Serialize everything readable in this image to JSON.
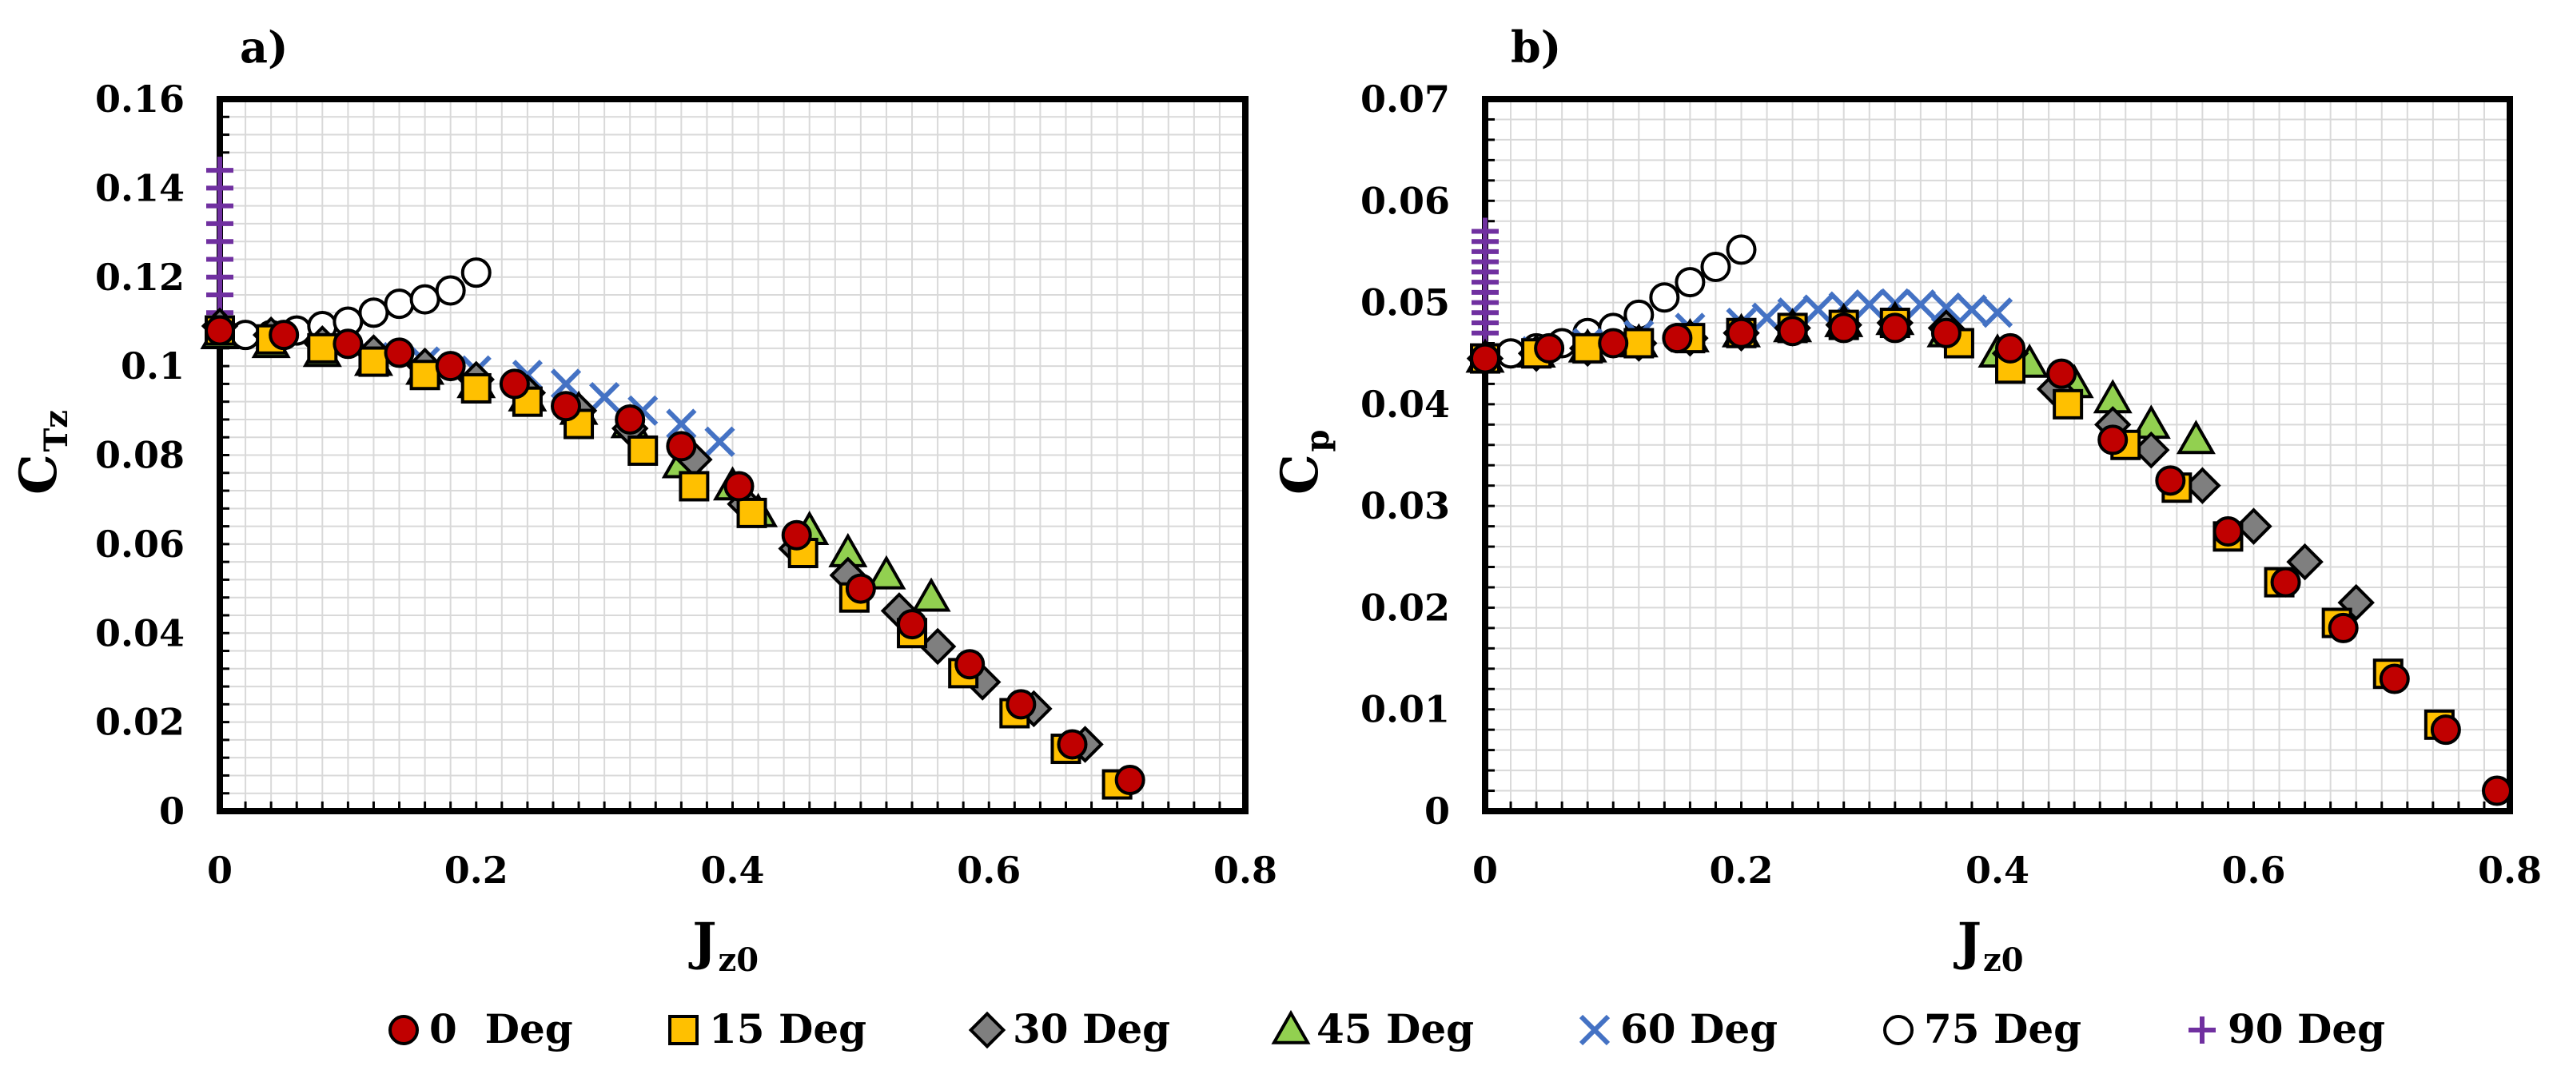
{
  "chart_data": [
    {
      "type": "scatter",
      "panel_label": "a)",
      "xlabel": "J",
      "xlabel_sub": "z0",
      "ylabel": "C",
      "ylabel_sub": "Tz",
      "xlim": [
        0,
        0.8
      ],
      "ylim": [
        0,
        0.16
      ],
      "xticks": [
        0,
        0.2,
        0.4,
        0.6,
        0.8
      ],
      "yticks": [
        0,
        0.02,
        0.04,
        0.06,
        0.08,
        0.1,
        0.12,
        0.14,
        0.16
      ],
      "xtick_labels": [
        "0",
        "0.2",
        "0.4",
        "0.6",
        "0.8"
      ],
      "ytick_labels": [
        "0",
        "0.02",
        "0.04",
        "0.06",
        "0.08",
        "0.1",
        "0.12",
        "0.14",
        "0.16"
      ],
      "grid": true,
      "series": [
        {
          "name": "0  Deg",
          "marker": "circle",
          "x": [
            0,
            0.05,
            0.1,
            0.14,
            0.18,
            0.23,
            0.27,
            0.32,
            0.36,
            0.405,
            0.45,
            0.5,
            0.54,
            0.585,
            0.625,
            0.665,
            0.71
          ],
          "y": [
            0.108,
            0.107,
            0.105,
            0.103,
            0.1,
            0.096,
            0.091,
            0.088,
            0.082,
            0.073,
            0.062,
            0.05,
            0.042,
            0.033,
            0.024,
            0.015,
            0.007
          ]
        },
        {
          "name": "15 Deg",
          "marker": "square",
          "x": [
            0,
            0.04,
            0.08,
            0.12,
            0.16,
            0.2,
            0.24,
            0.28,
            0.33,
            0.37,
            0.415,
            0.455,
            0.495,
            0.54,
            0.58,
            0.62,
            0.66,
            0.7
          ],
          "y": [
            0.108,
            0.106,
            0.104,
            0.101,
            0.098,
            0.095,
            0.092,
            0.087,
            0.081,
            0.073,
            0.067,
            0.058,
            0.048,
            0.04,
            0.031,
            0.022,
            0.014,
            0.006
          ]
        },
        {
          "name": "30 Deg",
          "marker": "diamond",
          "x": [
            0,
            0.04,
            0.08,
            0.12,
            0.16,
            0.2,
            0.24,
            0.28,
            0.32,
            0.37,
            0.41,
            0.45,
            0.49,
            0.53,
            0.56,
            0.595,
            0.635,
            0.675
          ],
          "y": [
            0.109,
            0.107,
            0.105,
            0.103,
            0.1,
            0.097,
            0.094,
            0.09,
            0.086,
            0.079,
            0.069,
            0.059,
            0.053,
            0.045,
            0.037,
            0.029,
            0.023,
            0.015
          ]
        },
        {
          "name": "45 Deg",
          "marker": "triangle",
          "x": [
            0,
            0.04,
            0.08,
            0.12,
            0.16,
            0.2,
            0.24,
            0.28,
            0.32,
            0.36,
            0.4,
            0.42,
            0.46,
            0.49,
            0.52,
            0.555
          ],
          "y": [
            0.107,
            0.105,
            0.103,
            0.101,
            0.099,
            0.096,
            0.093,
            0.09,
            0.087,
            0.078,
            0.073,
            0.067,
            0.063,
            0.058,
            0.053,
            0.048
          ]
        },
        {
          "name": "60 Deg",
          "marker": "x",
          "x": [
            0,
            0.04,
            0.08,
            0.12,
            0.16,
            0.2,
            0.24,
            0.27,
            0.3,
            0.33,
            0.36,
            0.39
          ],
          "y": [
            0.108,
            0.106,
            0.104,
            0.102,
            0.101,
            0.099,
            0.098,
            0.096,
            0.093,
            0.09,
            0.087,
            0.083
          ]
        },
        {
          "name": "75 Deg",
          "marker": "open-circle",
          "x": [
            0,
            0.02,
            0.04,
            0.06,
            0.08,
            0.1,
            0.12,
            0.14,
            0.16,
            0.18,
            0.2
          ],
          "y": [
            0.108,
            0.107,
            0.107,
            0.108,
            0.109,
            0.11,
            0.112,
            0.114,
            0.115,
            0.117,
            0.121
          ]
        },
        {
          "name": "90 Deg",
          "marker": "plus",
          "x": [
            0,
            0,
            0,
            0,
            0,
            0,
            0,
            0,
            0,
            0
          ],
          "y": [
            0.108,
            0.112,
            0.116,
            0.12,
            0.124,
            0.128,
            0.132,
            0.136,
            0.14,
            0.144
          ]
        }
      ]
    },
    {
      "type": "scatter",
      "panel_label": "b)",
      "xlabel": "J",
      "xlabel_sub": "z0",
      "ylabel": "C",
      "ylabel_sub": "p",
      "xlim": [
        0,
        0.8
      ],
      "ylim": [
        0,
        0.07
      ],
      "xticks": [
        0,
        0.2,
        0.4,
        0.6,
        0.8
      ],
      "yticks": [
        0,
        0.01,
        0.02,
        0.03,
        0.04,
        0.05,
        0.06,
        0.07
      ],
      "xtick_labels": [
        "0",
        "0.2",
        "0.4",
        "0.6",
        "0.8"
      ],
      "ytick_labels": [
        "0",
        "0.01",
        "0.02",
        "0.03",
        "0.04",
        "0.05",
        "0.06",
        "0.07"
      ],
      "grid": true,
      "series": [
        {
          "name": "0  Deg",
          "marker": "circle",
          "x": [
            0,
            0.05,
            0.1,
            0.15,
            0.2,
            0.24,
            0.28,
            0.32,
            0.36,
            0.41,
            0.45,
            0.49,
            0.535,
            0.58,
            0.625,
            0.67,
            0.71,
            0.75,
            0.79
          ],
          "y": [
            0.0445,
            0.0455,
            0.046,
            0.0465,
            0.047,
            0.0472,
            0.0475,
            0.0475,
            0.047,
            0.0455,
            0.043,
            0.0365,
            0.0325,
            0.0275,
            0.0225,
            0.018,
            0.013,
            0.008,
            0.002
          ]
        },
        {
          "name": "15 Deg",
          "marker": "square",
          "x": [
            0,
            0.04,
            0.08,
            0.12,
            0.16,
            0.2,
            0.24,
            0.28,
            0.32,
            0.37,
            0.41,
            0.455,
            0.5,
            0.54,
            0.58,
            0.62,
            0.665,
            0.705,
            0.745
          ],
          "y": [
            0.0445,
            0.045,
            0.0455,
            0.046,
            0.0465,
            0.047,
            0.0475,
            0.0478,
            0.048,
            0.046,
            0.0435,
            0.04,
            0.036,
            0.0318,
            0.027,
            0.0225,
            0.0185,
            0.0135,
            0.0085
          ]
        },
        {
          "name": "30 Deg",
          "marker": "diamond",
          "x": [
            0,
            0.04,
            0.08,
            0.12,
            0.16,
            0.2,
            0.24,
            0.28,
            0.32,
            0.36,
            0.41,
            0.445,
            0.49,
            0.52,
            0.56,
            0.6,
            0.64,
            0.68
          ],
          "y": [
            0.0445,
            0.045,
            0.0455,
            0.046,
            0.0465,
            0.047,
            0.0475,
            0.0478,
            0.048,
            0.0475,
            0.045,
            0.0415,
            0.038,
            0.0355,
            0.032,
            0.028,
            0.0245,
            0.0205
          ]
        },
        {
          "name": "45 Deg",
          "marker": "triangle",
          "x": [
            0,
            0.04,
            0.08,
            0.12,
            0.16,
            0.2,
            0.24,
            0.28,
            0.32,
            0.36,
            0.4,
            0.425,
            0.46,
            0.49,
            0.52,
            0.555
          ],
          "y": [
            0.0445,
            0.045,
            0.0455,
            0.046,
            0.0465,
            0.047,
            0.0475,
            0.048,
            0.0482,
            0.047,
            0.045,
            0.044,
            0.042,
            0.0405,
            0.038,
            0.0365
          ]
        },
        {
          "name": "60 Deg",
          "marker": "x",
          "x": [
            0,
            0.04,
            0.08,
            0.12,
            0.16,
            0.2,
            0.22,
            0.24,
            0.26,
            0.28,
            0.3,
            0.32,
            0.34,
            0.36,
            0.38,
            0.4
          ],
          "y": [
            0.0445,
            0.0452,
            0.046,
            0.0468,
            0.0475,
            0.048,
            0.0485,
            0.049,
            0.0493,
            0.0496,
            0.0498,
            0.0499,
            0.0498,
            0.0495,
            0.0493,
            0.049
          ]
        },
        {
          "name": "75 Deg",
          "marker": "open-circle",
          "x": [
            0,
            0.02,
            0.04,
            0.06,
            0.08,
            0.1,
            0.12,
            0.14,
            0.16,
            0.18,
            0.2
          ],
          "y": [
            0.0445,
            0.045,
            0.0455,
            0.046,
            0.047,
            0.0475,
            0.0488,
            0.0505,
            0.052,
            0.0535,
            0.0552
          ]
        },
        {
          "name": "90 Deg",
          "marker": "plus",
          "x": [
            0,
            0,
            0,
            0,
            0,
            0,
            0,
            0,
            0,
            0,
            0,
            0
          ],
          "y": [
            0.0445,
            0.047,
            0.048,
            0.049,
            0.05,
            0.051,
            0.052,
            0.053,
            0.054,
            0.055,
            0.056,
            0.057
          ]
        }
      ]
    }
  ],
  "legend": {
    "position": "bottom",
    "items": [
      {
        "label": "0  Deg",
        "marker": "circle"
      },
      {
        "label": "15 Deg",
        "marker": "square"
      },
      {
        "label": "30 Deg",
        "marker": "diamond"
      },
      {
        "label": "45 Deg",
        "marker": "triangle"
      },
      {
        "label": "60 Deg",
        "marker": "x"
      },
      {
        "label": "75 Deg",
        "marker": "open-circle"
      },
      {
        "label": "90 Deg",
        "marker": "plus"
      }
    ]
  },
  "colors": {
    "circle": "#c00000",
    "square": "#ffc000",
    "diamond": "#7f7f7f",
    "triangle": "#92d050",
    "x": "#4472c4",
    "open-circle": "#ffffff",
    "plus": "#7030a0",
    "grid": "#d9d9d9",
    "outline": "#000000"
  }
}
